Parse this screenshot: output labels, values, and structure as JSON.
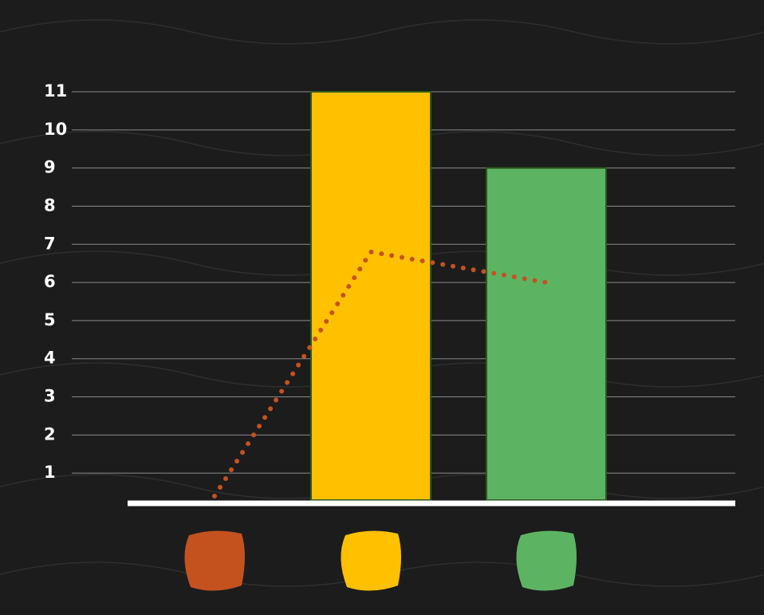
{
  "chart_data": {
    "type": "combo",
    "categories": [
      null,
      null,
      null
    ],
    "category_colors": [
      "#c4521f",
      "#ffc000",
      "#5cb463"
    ],
    "series": [
      {
        "type": "bar",
        "values": [
          null,
          11,
          9
        ]
      },
      {
        "type": "line",
        "color": "#c4521f",
        "line_style": "dotted",
        "values": [
          0.4,
          6.8,
          6.0
        ]
      }
    ],
    "ylim": [
      0,
      11
    ],
    "yticks": [
      1,
      2,
      3,
      4,
      5,
      6,
      7,
      8,
      9,
      10,
      11
    ],
    "grid": true
  }
}
